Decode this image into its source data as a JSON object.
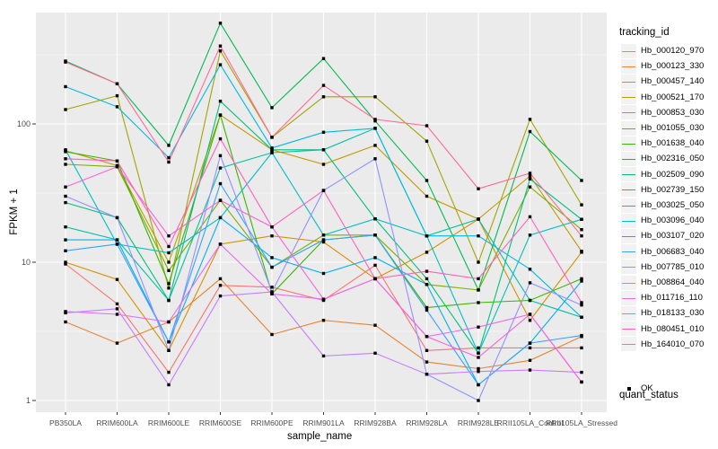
{
  "chart_data": {
    "type": "line",
    "title": "",
    "xlabel": "sample_name",
    "ylabel": "FPKM + 1",
    "y_scale": "log10",
    "y_ticks": [
      1,
      10,
      100
    ],
    "grid": true,
    "panel_bg": "#EBEBEB",
    "grid_color": "#FFFFFF",
    "point_color": "#000000",
    "point_shape": "square",
    "tick_label_color": "#4D4D4D",
    "legend_position": "right",
    "categories": [
      "PB350LA",
      "RRIM600LA",
      "RRIM600LE",
      "RRIM600SE",
      "RRIM600PE",
      "RRIM901LA",
      "RRIM928BA",
      "RRIM928LA",
      "RRIM928LE",
      "RRII105LA_Control",
      "RRII105LA_Stressed"
    ],
    "series": [
      {
        "name": "Hb_000120_970",
        "color": "#F8766D",
        "values": [
          9.7,
          5.0,
          1.6,
          6.8,
          6.6,
          5.3,
          9.5,
          2.3,
          2.4,
          2.4,
          2.4
        ]
      },
      {
        "name": "Hb_000123_330",
        "color": "#EA8331",
        "values": [
          3.7,
          2.6,
          3.7,
          7.6,
          3.0,
          3.8,
          3.5,
          1.9,
          1.7,
          1.95,
          2.9
        ]
      },
      {
        "name": "Hb_000457_140",
        "color": "#D89000",
        "values": [
          10.0,
          7.5,
          2.3,
          13.5,
          15.5,
          14.0,
          7.6,
          11.8,
          20.5,
          3.8,
          11.8
        ]
      },
      {
        "name": "Hb_000521_170",
        "color": "#C09B00",
        "values": [
          64,
          50,
          10,
          116,
          65,
          51,
          70,
          30,
          20.5,
          42,
          12
        ]
      },
      {
        "name": "Hb_000853_030",
        "color": "#A3A500",
        "values": [
          127,
          160,
          6.5,
          337,
          80,
          157,
          157,
          75,
          10,
          108,
          26
        ]
      },
      {
        "name": "Hb_001055_030",
        "color": "#7CAE00",
        "values": [
          51,
          49,
          8.7,
          28,
          9.2,
          15.7,
          15.7,
          6.9,
          6.3,
          35,
          17.2
        ]
      },
      {
        "name": "Hb_001638_040",
        "color": "#39B600",
        "values": [
          63,
          54,
          7.0,
          116,
          5.9,
          14.5,
          15.7,
          4.7,
          5.1,
          5.3,
          7.6
        ]
      },
      {
        "name": "Hb_002316_050",
        "color": "#00BB4E",
        "values": [
          285,
          195,
          70,
          535,
          131,
          297,
          105,
          39,
          6.3,
          88,
          39
        ]
      },
      {
        "name": "Hb_002509_090",
        "color": "#00BF7D",
        "values": [
          27,
          21,
          5.3,
          146,
          65,
          65,
          20.6,
          7.6,
          2.2,
          40,
          20.4
        ]
      },
      {
        "name": "Hb_002739_150",
        "color": "#00C1A3",
        "values": [
          18,
          14.5,
          5.3,
          48,
          62,
          65,
          93,
          15.5,
          20.5,
          5.3,
          4.0
        ]
      },
      {
        "name": "Hb_003025_050",
        "color": "#00BFC4",
        "values": [
          65,
          13.5,
          11.7,
          21,
          62,
          15.7,
          20.6,
          15.5,
          2.2,
          15.7,
          20.4
        ]
      },
      {
        "name": "Hb_003096_040",
        "color": "#00BAE0",
        "values": [
          186,
          133,
          57,
          268,
          67,
          87,
          93,
          15.5,
          15.5,
          8.9,
          4.0
        ]
      },
      {
        "name": "Hb_003107_020",
        "color": "#00B0F6",
        "values": [
          14.5,
          14.5,
          2.65,
          21,
          10.8,
          8.3,
          10.8,
          6.9,
          1.3,
          2.6,
          7.3
        ]
      },
      {
        "name": "Hb_006683_040",
        "color": "#35A2FF",
        "values": [
          12.1,
          13.5,
          2.65,
          37,
          9.2,
          14.5,
          15.7,
          4.5,
          1.3,
          2.6,
          2.95
        ]
      },
      {
        "name": "Hb_007785_010",
        "color": "#9590FF",
        "values": [
          30,
          21,
          2.3,
          59,
          6.1,
          33,
          56,
          1.55,
          1.0,
          7.1,
          4.9
        ]
      },
      {
        "name": "Hb_008864_040",
        "color": "#C77CFF",
        "values": [
          4.3,
          4.6,
          1.3,
          5.7,
          6.1,
          2.1,
          2.2,
          1.55,
          1.62,
          1.66,
          1.6
        ]
      },
      {
        "name": "Hb_011716_110",
        "color": "#E76BF3",
        "values": [
          4.4,
          4.2,
          3.7,
          13.5,
          5.9,
          5.4,
          7.6,
          2.9,
          3.4,
          4.2,
          1.36
        ]
      },
      {
        "name": "Hb_018133_030",
        "color": "#FA62DB",
        "values": [
          35,
          49,
          15.5,
          28,
          18,
          5.4,
          7.6,
          2.9,
          2.05,
          4.2,
          1.36
        ]
      },
      {
        "name": "Hb_080451_010",
        "color": "#FF62BC",
        "values": [
          56,
          54,
          13,
          78,
          18,
          33,
          7.6,
          8.6,
          7.6,
          21.3,
          5.1
        ]
      },
      {
        "name": "Hb_164010_070",
        "color": "#FF6A98",
        "values": [
          280,
          195,
          53,
          366,
          80,
          190,
          108,
          97,
          34,
          44,
          15.5
        ]
      }
    ],
    "legend": {
      "tracking_title": "tracking_id",
      "quant_title": "quant_status",
      "quant_items": [
        {
          "label": "OK"
        }
      ]
    }
  }
}
